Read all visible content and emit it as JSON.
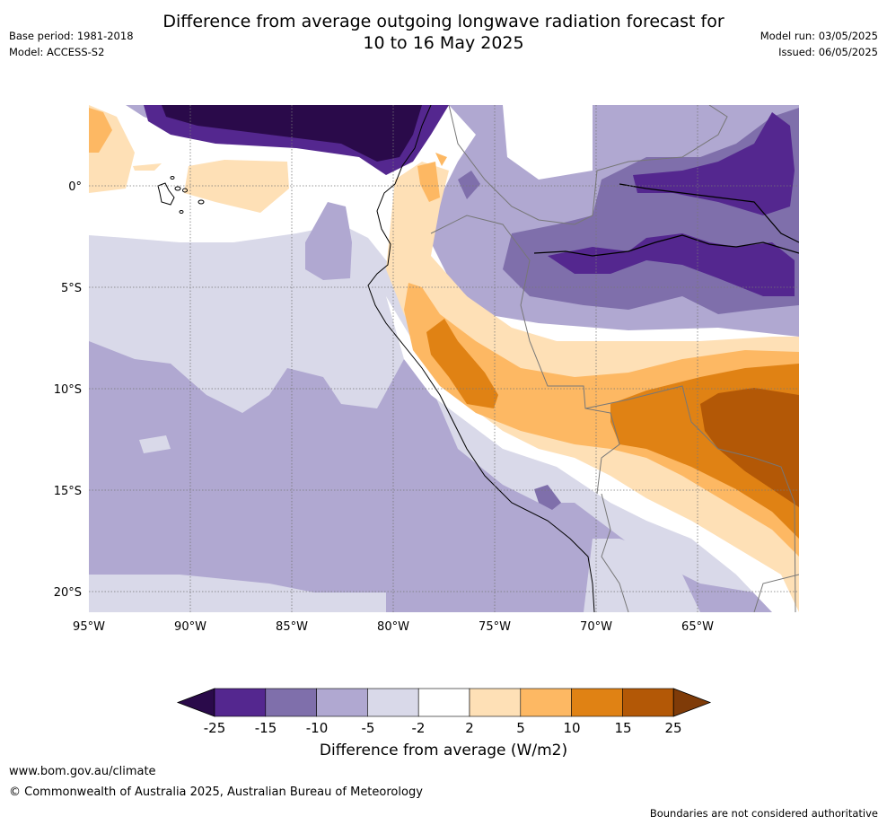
{
  "title_line1": "Difference from average outgoing longwave radiation forecast for",
  "title_line2": "10 to 16 May 2025",
  "meta": {
    "base_period": "Base period: 1981-2018",
    "model": "Model: ACCESS-S2",
    "model_run": "Model run: 03/05/2025",
    "issued": "Issued: 06/05/2025"
  },
  "map": {
    "lon_ticks": [
      "95°W",
      "90°W",
      "85°W",
      "80°W",
      "75°W",
      "70°W",
      "65°W"
    ],
    "lat_ticks": [
      "0°",
      "5°S",
      "10°S",
      "15°S",
      "20°S"
    ]
  },
  "colorbar": {
    "labels": [
      "-25",
      "-15",
      "-10",
      "-5",
      "-2",
      "2",
      "5",
      "10",
      "15",
      "25"
    ],
    "colors": {
      "lt_m25": "#2a0a4a",
      "m25_m15": "#54278f",
      "m15_m10": "#7f6fab",
      "m10_m5": "#b0a8d1",
      "m5_m2": "#d9d9e9",
      "m2_2": "#ffffff",
      "2_5": "#fee0b6",
      "5_10": "#fdb863",
      "10_15": "#e08214",
      "15_25": "#b35806",
      "gt_25": "#7f3b08"
    },
    "label": "Difference from average (W/m2)"
  },
  "footer": {
    "url": "www.bom.gov.au/climate",
    "copyright": "© Commonwealth of Australia 2025, Australian Bureau of Meteorology",
    "disclaimer": "Boundaries are not considered authoritative"
  }
}
